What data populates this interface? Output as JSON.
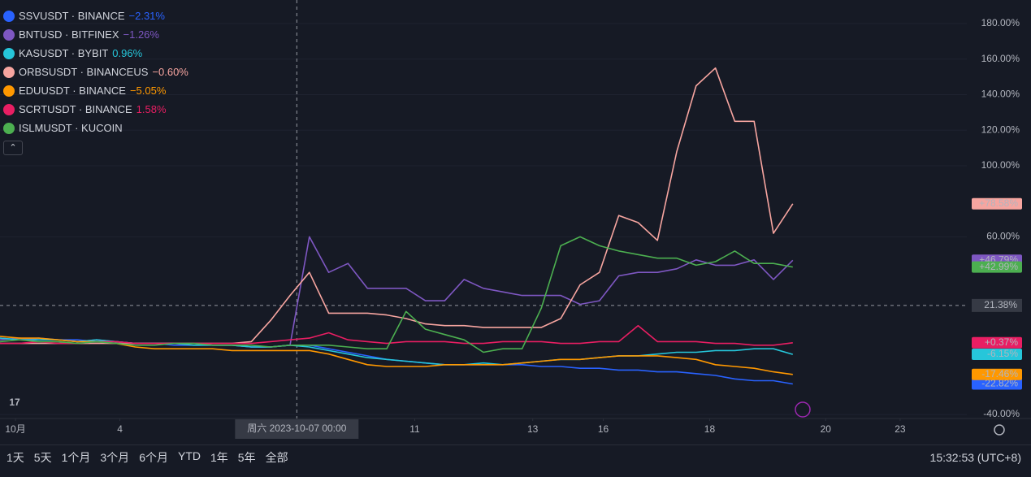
{
  "chart_data": {
    "type": "line",
    "x": [
      0,
      2,
      4,
      6,
      8,
      10,
      12,
      14,
      16,
      18,
      20,
      22,
      24,
      26,
      28,
      30,
      32,
      34,
      36,
      38,
      40,
      42,
      44,
      46,
      48,
      50,
      52,
      54,
      56,
      58,
      60,
      62,
      64,
      66,
      68,
      70,
      72,
      74,
      76,
      78,
      80,
      82
    ],
    "xlim": [
      0,
      100
    ],
    "xticks": [
      {
        "value": 1.6,
        "label": "10月"
      },
      {
        "value": 12.4,
        "label": "4"
      },
      {
        "value": 42.9,
        "label": "11"
      },
      {
        "value": 55.1,
        "label": "13"
      },
      {
        "value": 62.4,
        "label": "16"
      },
      {
        "value": 73.4,
        "label": "18"
      },
      {
        "value": 85.4,
        "label": "20"
      },
      {
        "value": 93.1,
        "label": "23"
      }
    ],
    "ylim": [
      -45,
      191
    ],
    "yticks": [
      {
        "value": 180,
        "label": "180.00%"
      },
      {
        "value": 160,
        "label": "160.00%"
      },
      {
        "value": 140,
        "label": "140.00%"
      },
      {
        "value": 120,
        "label": "120.00%"
      },
      {
        "value": 100,
        "label": "100.00%"
      },
      {
        "value": 60,
        "label": "60.00%"
      },
      {
        "value": -40,
        "label": "-40.00%"
      }
    ],
    "grid": true,
    "crosshair": {
      "x_label": "周六 2023-10-07  00:00",
      "y": {
        "value": 21.38,
        "label": "21.38%"
      }
    },
    "series": [
      {
        "name": "SSVUSDT · BINANCE",
        "change": "−2.31%",
        "color": "#2962ff",
        "values": [
          3,
          2,
          3,
          2,
          2,
          1,
          1,
          0,
          0,
          -1,
          -1,
          -1,
          -1,
          -2,
          -2,
          -1,
          -1,
          -3,
          -5,
          -7,
          -9,
          -10,
          -11,
          -12,
          -12,
          -12,
          -12,
          -12,
          -13,
          -13,
          -14,
          -14,
          -15,
          -15,
          -16,
          -16,
          -17,
          -18,
          -20,
          -21,
          -21,
          -22.82
        ],
        "value_label": "-22.82%"
      },
      {
        "name": "BNTUSD · BITFINEX",
        "change": "−1.26%",
        "color": "#7e57c2",
        "values": [
          2,
          3,
          2,
          2,
          1,
          2,
          1,
          0,
          0,
          0,
          0,
          -1,
          -1,
          -2,
          -2,
          -1,
          60,
          40,
          45,
          31,
          31,
          31,
          24,
          24,
          36,
          31,
          29,
          27,
          27,
          27,
          22,
          24,
          38,
          40,
          40,
          42,
          47,
          44,
          44,
          47,
          36,
          46.79
        ],
        "value_label": "+46.79%"
      },
      {
        "name": "KASUSDT · BYBIT",
        "change": "0.96%",
        "color": "#26c6da",
        "values": [
          3,
          2,
          2,
          2,
          1,
          2,
          1,
          0,
          0,
          0,
          -1,
          -1,
          -1,
          -2,
          -2,
          -1,
          -2,
          -4,
          -6,
          -8,
          -9,
          -10,
          -11,
          -12,
          -12,
          -11,
          -12,
          -11,
          -10,
          -9,
          -9,
          -8,
          -7,
          -7,
          -6,
          -5,
          -5,
          -4,
          -4,
          -3,
          -3,
          -6.15
        ],
        "value_label": "-6.15%"
      },
      {
        "name": "ORBSUSDT · BINANCEUS",
        "change": "−0.60%",
        "color": "#f7a5a0",
        "values": [
          0,
          0,
          0,
          0,
          0,
          0,
          0,
          0,
          0,
          0,
          0,
          0,
          0,
          1,
          13,
          27,
          40,
          17,
          17,
          17,
          16,
          14,
          11,
          10,
          10,
          9,
          9,
          9,
          9,
          14,
          33,
          40,
          72,
          68,
          58,
          108,
          145,
          155,
          125,
          125,
          62,
          78.58
        ],
        "value_label": "+78.58%"
      },
      {
        "name": "EDUUSDT · BINANCE",
        "change": "−5.05%",
        "color": "#ff9800",
        "values": [
          4,
          3,
          3,
          2,
          1,
          1,
          0,
          -2,
          -3,
          -3,
          -3,
          -3,
          -4,
          -4,
          -4,
          -4,
          -4,
          -6,
          -9,
          -12,
          -13,
          -13,
          -13,
          -12,
          -12,
          -12,
          -12,
          -11,
          -10,
          -9,
          -9,
          -8,
          -7,
          -7,
          -7,
          -8,
          -9,
          -12,
          -13,
          -14,
          -16,
          -17.46
        ],
        "value_label": "-17.46%"
      },
      {
        "name": "SCRTUSDT · BINANCE",
        "change": "1.58%",
        "color": "#e91e63",
        "values": [
          0,
          0,
          1,
          0,
          0,
          1,
          1,
          0,
          0,
          0,
          0,
          0,
          0,
          0,
          1,
          2,
          3,
          6,
          2,
          1,
          0,
          1,
          1,
          1,
          0,
          0,
          1,
          1,
          1,
          0,
          0,
          1,
          1,
          10,
          1,
          1,
          1,
          0,
          0,
          -1,
          -1,
          0.37
        ],
        "value_label": "+0.37%"
      },
      {
        "name": "ISLMUSDT · KUCOIN",
        "color": "#4caf50",
        "values": [
          1,
          2,
          1,
          1,
          0,
          1,
          0,
          -1,
          -1,
          0,
          0,
          -1,
          -1,
          -1,
          -2,
          -1,
          -1,
          -1,
          -2,
          -3,
          -3,
          18,
          8,
          5,
          2,
          -5,
          -3,
          -3,
          20,
          55,
          60,
          55,
          52,
          50,
          48,
          48,
          44,
          46,
          52,
          45,
          45,
          42.99
        ],
        "value_label": "+42.99%"
      }
    ]
  },
  "toolbar": {
    "ranges": [
      "1天",
      "5天",
      "1个月",
      "3个月",
      "6个月",
      "YTD",
      "1年",
      "5年",
      "全部"
    ],
    "clock": "15:32:53 (UTC+8)"
  }
}
